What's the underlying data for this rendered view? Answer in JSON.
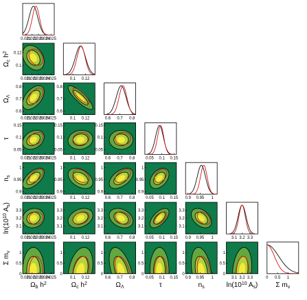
{
  "chart_data": {
    "type": "corner",
    "grid": false,
    "colors": {
      "background": "#0f7a4a",
      "mid": "#7fb83c",
      "core": "#f4ec3a",
      "contour": "#111111",
      "second": "#d11a1a",
      "frame": "#000000"
    },
    "parameters": [
      {
        "key": "ombh2",
        "label_main": "Ω",
        "label_sub": "b",
        "label_tail": " h",
        "label_sup": "2",
        "range": [
          0.0205,
          0.0255
        ],
        "ticks": [
          0.021,
          0.022,
          0.023,
          0.024,
          0.025
        ],
        "tick_labels": [
          "0.021",
          "0.022",
          "0.023",
          "0.024",
          "0.025"
        ],
        "mean": 0.0222,
        "sigma": 0.0007,
        "mean2": 0.0226
      },
      {
        "key": "omch2",
        "label_main": "Ω",
        "label_sub": "c",
        "label_tail": " h",
        "label_sup": "2",
        "range": [
          0.085,
          0.135
        ],
        "ticks": [
          0.1,
          0.12
        ],
        "tick_labels": [
          "0.1",
          "0.12"
        ],
        "mean": 0.112,
        "sigma": 0.008,
        "mean2": 0.113
      },
      {
        "key": "omegal",
        "label_main": "Ω",
        "label_sub": "Λ",
        "label_tail": "",
        "label_sup": "",
        "range": [
          0.57,
          0.83
        ],
        "ticks": [
          0.6,
          0.7,
          0.8
        ],
        "tick_labels": [
          "0.6",
          "0.7",
          "0.8"
        ],
        "mean": 0.71,
        "sigma": 0.04,
        "mean2": 0.725
      },
      {
        "key": "tau",
        "label_main": "τ",
        "label_sub": "",
        "label_tail": "",
        "label_sup": "",
        "range": [
          0.03,
          0.16
        ],
        "ticks": [
          0.05,
          0.1,
          0.15
        ],
        "tick_labels": [
          "0.05",
          "0.1",
          "0.15"
        ],
        "mean": 0.09,
        "sigma": 0.016,
        "mean2": 0.095
      },
      {
        "key": "ns",
        "label_main": "n",
        "label_sub": "s",
        "label_tail": "",
        "label_sup": "",
        "range": [
          0.89,
          1.02
        ],
        "ticks": [
          0.9,
          0.95,
          1
        ],
        "tick_labels": [
          "0.9",
          "0.95",
          "1"
        ],
        "mean": 0.955,
        "sigma": 0.017,
        "mean2": 0.965
      },
      {
        "key": "logA",
        "label_main": "ln(10",
        "label_sub": "",
        "label_tail": " A",
        "label_sup": "10",
        "label_sub2": "s",
        "label_close": ")",
        "range": [
          3.0,
          3.4
        ],
        "ticks": [
          3.1,
          3.2,
          3.3
        ],
        "tick_labels": [
          "3.1",
          "3.2",
          "3.3"
        ],
        "mean": 3.2,
        "sigma": 0.05,
        "mean2": 3.2
      },
      {
        "key": "mnu",
        "label_main": "Σ m",
        "label_sub": "ν",
        "label_tail": "",
        "label_sup": "",
        "range": [
          0,
          1.5
        ],
        "ticks": [
          0,
          0.5,
          1
        ],
        "tick_labels": [
          "0",
          "0.5",
          "1"
        ],
        "mean": 0.15,
        "sigma": 0.45,
        "mean2": 0.1
      }
    ],
    "correlations": [
      [
        1,
        -0.3,
        0.5,
        0.3,
        0.6,
        0.1,
        0.0
      ],
      [
        -0.3,
        1,
        -0.85,
        0.1,
        -0.4,
        0.3,
        0.3
      ],
      [
        0.5,
        -0.85,
        1,
        0.0,
        0.5,
        -0.3,
        -0.5
      ],
      [
        0.3,
        0.1,
        0.0,
        1,
        0.4,
        0.6,
        0.0
      ],
      [
        0.6,
        -0.4,
        0.5,
        0.4,
        1,
        -0.4,
        -0.3
      ],
      [
        0.1,
        0.3,
        -0.3,
        0.6,
        -0.4,
        1,
        0.2
      ],
      [
        0.0,
        0.3,
        -0.5,
        0.0,
        -0.3,
        0.2,
        1
      ]
    ]
  }
}
